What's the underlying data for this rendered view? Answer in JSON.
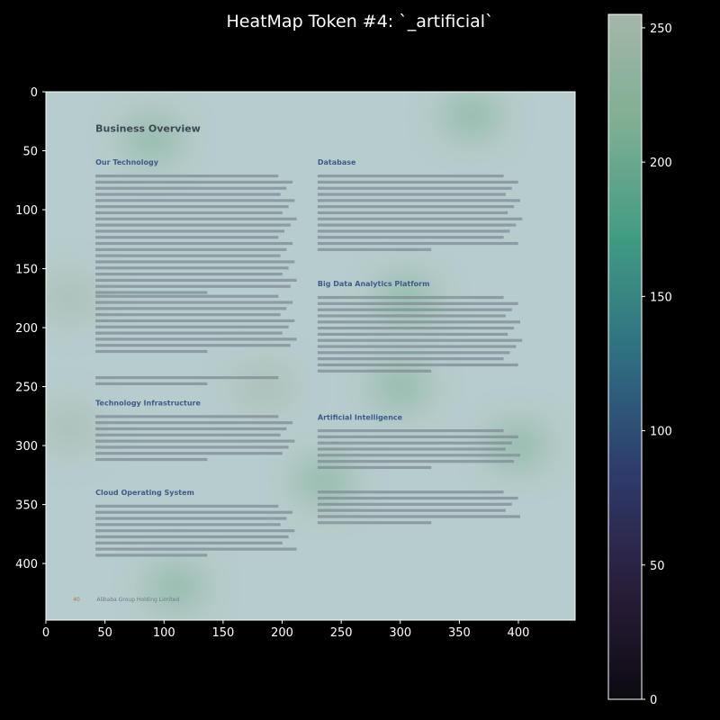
{
  "chart_data": {
    "type": "heatmap",
    "title": "HeatMap Token #4: `_artificial`",
    "xlabel": "",
    "ylabel": "",
    "xlim": [
      0,
      448
    ],
    "ylim": [
      448,
      0
    ],
    "x_ticks": [
      0,
      50,
      100,
      150,
      200,
      250,
      300,
      350,
      400
    ],
    "y_ticks": [
      0,
      50,
      100,
      150,
      200,
      250,
      300,
      350,
      400
    ],
    "colorbar": {
      "range": [
        0,
        255
      ],
      "ticks": [
        0,
        50,
        100,
        150,
        200,
        250
      ],
      "colors": [
        "#0d0a10",
        "#2a1e3c",
        "#2e3c6c",
        "#2f6e82",
        "#3f9a82",
        "#7cae92",
        "#a4b7a8"
      ]
    },
    "heat_blobs": [
      {
        "x": 20,
        "y": 175,
        "v": 250
      },
      {
        "x": 20,
        "y": 285,
        "v": 240
      },
      {
        "x": 185,
        "y": 250,
        "v": 235
      },
      {
        "x": 300,
        "y": 250,
        "v": 230
      },
      {
        "x": 305,
        "y": 175,
        "v": 225
      },
      {
        "x": 90,
        "y": 40,
        "v": 215
      },
      {
        "x": 360,
        "y": 20,
        "v": 205
      },
      {
        "x": 235,
        "y": 330,
        "v": 215
      },
      {
        "x": 400,
        "y": 300,
        "v": 220
      },
      {
        "x": 110,
        "y": 420,
        "v": 205
      }
    ]
  },
  "document": {
    "page_title": "Business Overview",
    "left": [
      {
        "heading": "Our Technology",
        "top": 62,
        "lines": 20
      },
      {
        "heading": "",
        "top": 176,
        "lines": 10
      },
      {
        "heading": "",
        "top": 245,
        "lines": 2
      },
      {
        "heading": "Technology Infrastructure",
        "top": 266,
        "lines": 8
      },
      {
        "heading": "Cloud Operating System",
        "top": 342,
        "lines": 9
      }
    ],
    "right": [
      {
        "heading": "Database",
        "top": 62,
        "lines": 13
      },
      {
        "heading": "Big Data Analytics Platform",
        "top": 165,
        "lines": 13
      },
      {
        "heading": "Artificial Intelligence",
        "top": 278,
        "lines": 7
      },
      {
        "heading": "",
        "top": 342,
        "lines": 6
      }
    ],
    "footer_number": "40",
    "footer_text": "Alibaba Group Holding Limited"
  }
}
